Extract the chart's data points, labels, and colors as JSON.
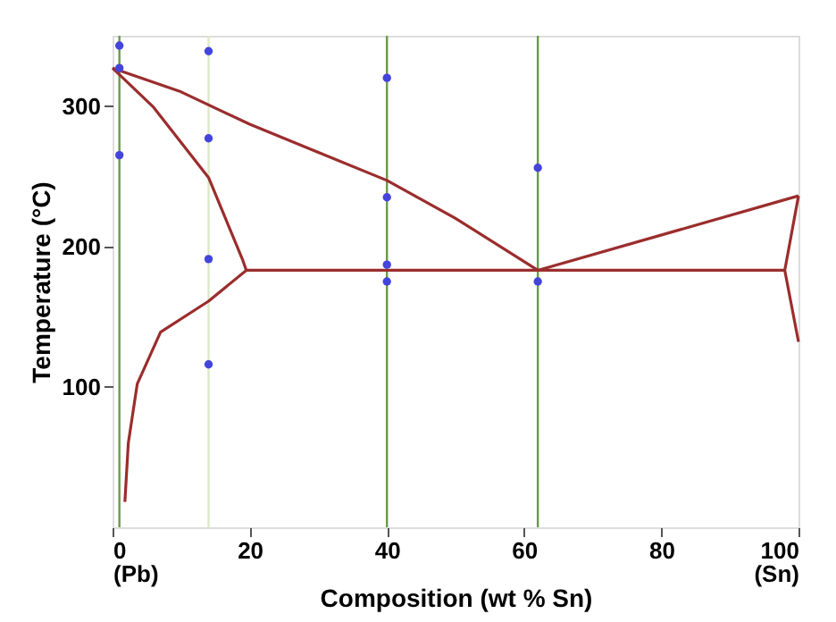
{
  "chart_data": {
    "type": "line",
    "xlabel": "Composition (wt % Sn)",
    "ylabel": "Temperature (°C)",
    "xlim": [
      0,
      100
    ],
    "ylim": [
      0,
      350
    ],
    "xticks": [
      {
        "value": 0,
        "label": "0\n(Pb)"
      },
      20,
      40,
      60,
      80,
      {
        "value": 100,
        "label": "100\n(Sn)"
      }
    ],
    "yticks": [
      100,
      200,
      300
    ],
    "grid": false,
    "marker": "none",
    "line_style": "solid",
    "series": [
      {
        "color": "#9b2d2d",
        "x": [
          0,
          10,
          20,
          30,
          40,
          50,
          62
        ],
        "values": [
          327,
          310,
          287,
          267,
          247,
          220,
          183
        ]
      },
      {
        "color": "#9b2d2d",
        "x": [
          62,
          100
        ],
        "values": [
          183,
          236
        ]
      },
      {
        "color": "#9b2d2d",
        "x": [
          0,
          6,
          14,
          19,
          19.5
        ],
        "values": [
          327,
          299,
          249,
          190,
          183
        ]
      },
      {
        "color": "#9b2d2d",
        "x": [
          19.5,
          14,
          7,
          3.6,
          2.3,
          1.8
        ],
        "values": [
          183,
          161,
          139,
          102,
          60,
          18
        ]
      },
      {
        "color": "#9b2d2d",
        "x": [
          19.5,
          98
        ],
        "values": [
          183,
          183
        ]
      },
      {
        "color": "#9b2d2d",
        "x": [
          100,
          98,
          100
        ],
        "values": [
          236,
          183,
          132
        ]
      },
      {
        "type": "scatter",
        "color": "#4444dd",
        "marker": "circle",
        "x": [
          1,
          1,
          1,
          14,
          14,
          14,
          14,
          40,
          40,
          40,
          40,
          62,
          62
        ],
        "values": [
          343,
          327,
          265,
          339,
          277,
          191,
          116,
          320,
          235,
          187,
          175,
          256,
          175
        ]
      }
    ],
    "ref_lines": [
      {
        "axis": "x",
        "value": 1,
        "color": "#6a9a4a"
      },
      {
        "axis": "x",
        "value": 14,
        "color": "#dde8c8"
      },
      {
        "axis": "x",
        "value": 40,
        "color": "#6a9a4a"
      },
      {
        "axis": "x",
        "value": 62,
        "color": "#6a9a4a"
      }
    ]
  }
}
